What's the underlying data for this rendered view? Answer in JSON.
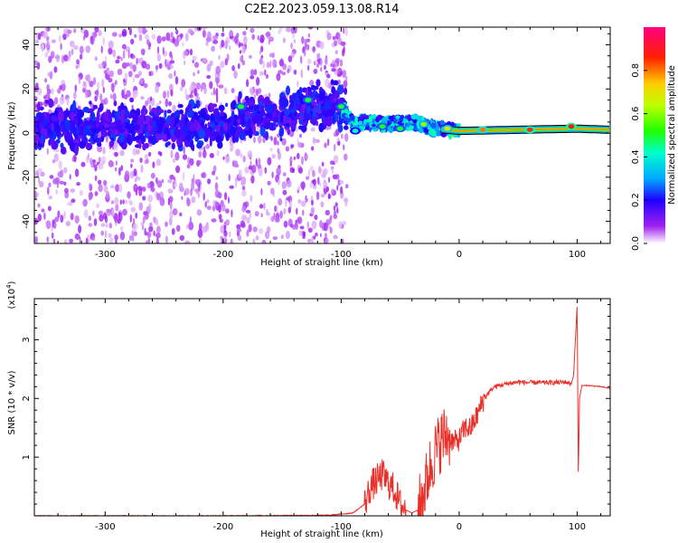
{
  "title": "C2E2.2023.059.13.08.R14",
  "colorbar": {
    "label": "Normalized spectral amplitude",
    "ticks": [
      "0.0",
      "0.2",
      "0.4",
      "0.6",
      "0.8"
    ],
    "tick_values": [
      0,
      0.2,
      0.4,
      0.6,
      0.8
    ],
    "range": [
      0,
      1
    ]
  },
  "chart_data": [
    {
      "type": "heatmap",
      "xlabel": "Height of straight line (km)",
      "ylabel": "Frequency (Hz)",
      "xlim": [
        -360,
        128
      ],
      "ylim": [
        -50,
        48
      ],
      "xticks": [
        -300,
        -200,
        -100,
        0,
        100
      ],
      "xtick_labels": [
        "-300",
        "-200",
        "-100",
        "0",
        "100"
      ],
      "yticks": [
        -40,
        -20,
        0,
        20,
        40
      ],
      "ytick_labels": [
        "-40",
        "-20",
        "0",
        "20",
        "40"
      ],
      "ridge": [
        {
          "x": -360,
          "y": 2
        },
        {
          "x": -300,
          "y": 3
        },
        {
          "x": -250,
          "y": 3
        },
        {
          "x": -200,
          "y": 4
        },
        {
          "x": -180,
          "y": 8
        },
        {
          "x": -160,
          "y": 7
        },
        {
          "x": -140,
          "y": 10
        },
        {
          "x": -120,
          "y": 13
        },
        {
          "x": -100,
          "y": 12
        },
        {
          "x": -90,
          "y": 4
        },
        {
          "x": -80,
          "y": 5
        },
        {
          "x": -60,
          "y": 4
        },
        {
          "x": -40,
          "y": 5
        },
        {
          "x": -20,
          "y": 2
        },
        {
          "x": 0,
          "y": 1
        },
        {
          "x": 50,
          "y": 1.5
        },
        {
          "x": 100,
          "y": 2
        },
        {
          "x": 128,
          "y": 1.5
        }
      ],
      "hotspots": [
        {
          "x": -185,
          "y": 12,
          "amp": 0.5
        },
        {
          "x": -128,
          "y": 15,
          "amp": 0.5
        },
        {
          "x": -100,
          "y": 12,
          "amp": 0.5
        },
        {
          "x": -88,
          "y": 1,
          "amp": 0.4
        },
        {
          "x": -65,
          "y": 3,
          "amp": 0.5
        },
        {
          "x": -50,
          "y": 2,
          "amp": 0.5
        },
        {
          "x": -30,
          "y": 4,
          "amp": 0.6
        },
        {
          "x": -10,
          "y": 2,
          "amp": 0.7
        },
        {
          "x": 20,
          "y": 1.5,
          "amp": 0.8
        },
        {
          "x": 60,
          "y": 1.5,
          "amp": 0.85
        },
        {
          "x": 95,
          "y": 3,
          "amp": 0.9
        }
      ]
    },
    {
      "type": "line",
      "xlabel": "Height of straight line (km)",
      "ylabel": "SNR (10 * v/v)",
      "yunit": "(x10",
      "yunit_exp": "4",
      "yunit_close": ")",
      "xlim": [
        -360,
        128
      ],
      "ylim": [
        0,
        3.7
      ],
      "xticks": [
        -300,
        -200,
        -100,
        0,
        100
      ],
      "xtick_labels": [
        "-300",
        "-200",
        "-100",
        "0",
        "100"
      ],
      "yticks": [
        1,
        2,
        3
      ],
      "ytick_labels": [
        "1",
        "2",
        "3"
      ],
      "color": "#e8302a",
      "points": [
        [
          -360,
          0.0
        ],
        [
          -300,
          0.0
        ],
        [
          -200,
          0.0
        ],
        [
          -110,
          0.01
        ],
        [
          -100,
          0.03
        ],
        [
          -90,
          0.05
        ],
        [
          -80,
          0.2
        ],
        [
          -75,
          0.5
        ],
        [
          -70,
          0.6
        ],
        [
          -65,
          0.7
        ],
        [
          -60,
          0.55
        ],
        [
          -55,
          0.45
        ],
        [
          -50,
          0.2
        ],
        [
          -45,
          0.1
        ],
        [
          -40,
          0.05
        ],
        [
          -35,
          0.1
        ],
        [
          -30,
          0.4
        ],
        [
          -25,
          0.8
        ],
        [
          -20,
          1.1
        ],
        [
          -15,
          1.3
        ],
        [
          -10,
          1.4
        ],
        [
          -5,
          1.25
        ],
        [
          0,
          1.3
        ],
        [
          5,
          1.5
        ],
        [
          10,
          1.5
        ],
        [
          15,
          1.7
        ],
        [
          20,
          1.95
        ],
        [
          25,
          2.1
        ],
        [
          30,
          2.2
        ],
        [
          40,
          2.25
        ],
        [
          50,
          2.28
        ],
        [
          60,
          2.27
        ],
        [
          70,
          2.27
        ],
        [
          80,
          2.27
        ],
        [
          90,
          2.28
        ],
        [
          95,
          2.25
        ],
        [
          97,
          2.4
        ],
        [
          99,
          3.2
        ],
        [
          100,
          3.6
        ],
        [
          101,
          0.6
        ],
        [
          102,
          2.0
        ],
        [
          104,
          2.22
        ],
        [
          110,
          2.22
        ],
        [
          120,
          2.2
        ],
        [
          128,
          2.17
        ]
      ],
      "noise_spans": [
        {
          "x0": -80,
          "x1": -45,
          "amp": 0.28
        },
        {
          "x0": -35,
          "x1": -8,
          "amp": 0.55
        },
        {
          "x0": -8,
          "x1": 22,
          "amp": 0.2
        },
        {
          "x0": 22,
          "x1": 95,
          "amp": 0.04
        }
      ]
    }
  ]
}
